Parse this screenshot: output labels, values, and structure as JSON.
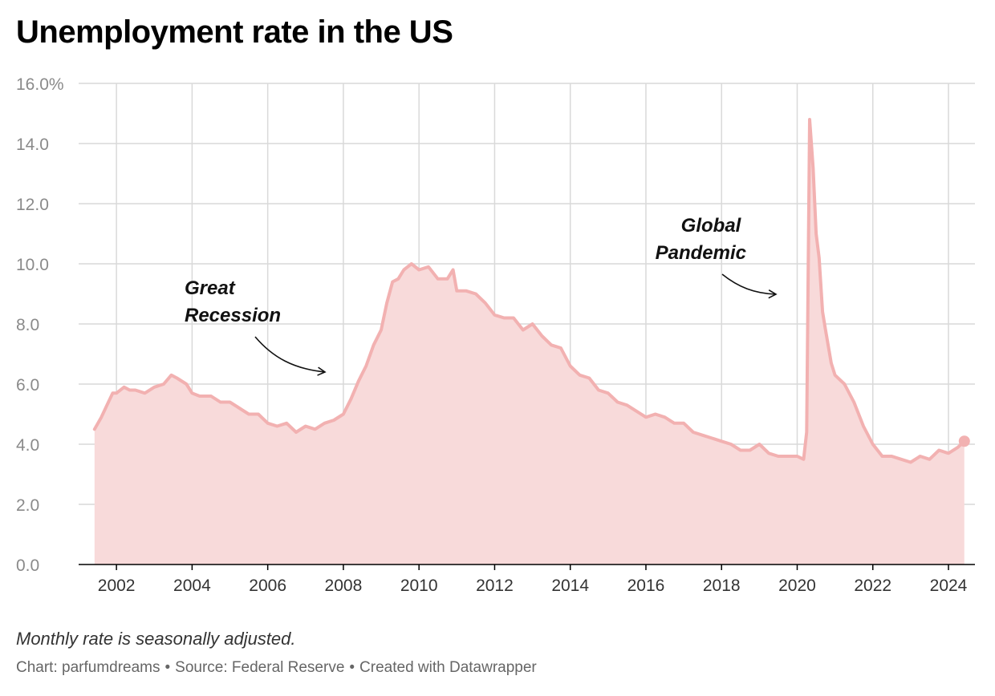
{
  "title": "Unemployment rate in the US",
  "footer": {
    "note": "Monthly rate is seasonally adjusted.",
    "chart_by": "Chart: parfumdreams",
    "source": "Source: Federal Reserve",
    "created": "Created with Datawrapper",
    "separator": "•"
  },
  "colors": {
    "line": "#f2b1b1",
    "area": "#f8dada",
    "grid": "#d9d9d9",
    "axis": "#000000"
  },
  "chart_data": {
    "type": "area",
    "title": "Unemployment rate in the US",
    "xlabel": "",
    "ylabel": "",
    "xlim": [
      2001.0,
      2024.7
    ],
    "ylim": [
      0,
      16
    ],
    "y_ticks": [
      "0.0",
      "2.0",
      "4.0",
      "6.0",
      "8.0",
      "10.0",
      "12.0",
      "14.0",
      "16.0%"
    ],
    "y_tick_values": [
      0,
      2,
      4,
      6,
      8,
      10,
      12,
      14,
      16
    ],
    "x_ticks": [
      "2002",
      "2004",
      "2006",
      "2008",
      "2010",
      "2012",
      "2014",
      "2016",
      "2018",
      "2020",
      "2022",
      "2024"
    ],
    "x_tick_values": [
      2002,
      2004,
      2006,
      2008,
      2010,
      2012,
      2014,
      2016,
      2018,
      2020,
      2022,
      2024
    ],
    "grid": true,
    "series": [
      {
        "x": [
          2001.42,
          2001.6,
          2001.75,
          2001.9,
          2002.0,
          2002.2,
          2002.35,
          2002.5,
          2002.75,
          2003.0,
          2003.25,
          2003.45,
          2003.6,
          2003.85,
          2004.0,
          2004.2,
          2004.5,
          2004.75,
          2005.0,
          2005.25,
          2005.5,
          2005.75,
          2006.0,
          2006.25,
          2006.5,
          2006.75,
          2007.0,
          2007.25,
          2007.5,
          2007.75,
          2008.0,
          2008.2,
          2008.4,
          2008.6,
          2008.8,
          2009.0,
          2009.15,
          2009.3,
          2009.45,
          2009.6,
          2009.8,
          2010.0,
          2010.25,
          2010.5,
          2010.75,
          2010.9,
          2011.0,
          2011.25,
          2011.5,
          2011.75,
          2012.0,
          2012.25,
          2012.5,
          2012.75,
          2013.0,
          2013.25,
          2013.5,
          2013.75,
          2014.0,
          2014.25,
          2014.5,
          2014.75,
          2015.0,
          2015.25,
          2015.5,
          2015.75,
          2016.0,
          2016.25,
          2016.5,
          2016.75,
          2017.0,
          2017.25,
          2017.5,
          2017.75,
          2018.0,
          2018.25,
          2018.5,
          2018.75,
          2019.0,
          2019.25,
          2019.5,
          2019.75,
          2020.0,
          2020.17,
          2020.25,
          2020.33,
          2020.42,
          2020.5,
          2020.58,
          2020.67,
          2020.75,
          2020.9,
          2021.0,
          2021.25,
          2021.5,
          2021.75,
          2022.0,
          2022.25,
          2022.5,
          2022.75,
          2023.0,
          2023.25,
          2023.5,
          2023.75,
          2024.0,
          2024.25,
          2024.42
        ],
        "values": [
          4.5,
          4.9,
          5.3,
          5.7,
          5.7,
          5.9,
          5.8,
          5.8,
          5.7,
          5.9,
          6.0,
          6.3,
          6.2,
          6.0,
          5.7,
          5.6,
          5.6,
          5.4,
          5.4,
          5.2,
          5.0,
          5.0,
          4.7,
          4.6,
          4.7,
          4.4,
          4.6,
          4.5,
          4.7,
          4.8,
          5.0,
          5.5,
          6.1,
          6.6,
          7.3,
          7.8,
          8.7,
          9.4,
          9.5,
          9.8,
          10.0,
          9.8,
          9.9,
          9.5,
          9.5,
          9.8,
          9.1,
          9.1,
          9.0,
          8.7,
          8.3,
          8.2,
          8.2,
          7.8,
          8.0,
          7.6,
          7.3,
          7.2,
          6.6,
          6.3,
          6.2,
          5.8,
          5.7,
          5.4,
          5.3,
          5.1,
          4.9,
          5.0,
          4.9,
          4.7,
          4.7,
          4.4,
          4.3,
          4.2,
          4.1,
          4.0,
          3.8,
          3.8,
          4.0,
          3.7,
          3.6,
          3.6,
          3.6,
          3.5,
          4.4,
          14.8,
          13.2,
          11.0,
          10.2,
          8.4,
          7.8,
          6.7,
          6.3,
          6.0,
          5.4,
          4.6,
          4.0,
          3.6,
          3.6,
          3.5,
          3.4,
          3.6,
          3.5,
          3.8,
          3.7,
          3.9,
          4.1
        ]
      }
    ],
    "annotations": [
      {
        "lines": [
          "Great",
          "Recession"
        ]
      },
      {
        "lines": [
          "Global",
          "Pandemic"
        ]
      }
    ]
  }
}
